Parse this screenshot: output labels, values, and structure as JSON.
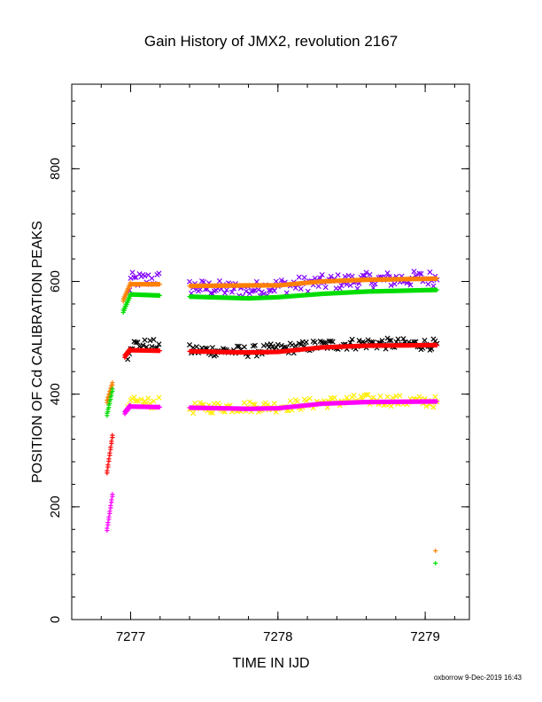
{
  "chart_data": {
    "type": "scatter",
    "title": "Gain History of JMX2, revolution 2167",
    "xlabel": "TIME IN IJD",
    "ylabel": "POSITION OF Cd CALIBRATION PEAKS",
    "xlim": [
      7276.6,
      7279.3
    ],
    "ylim": [
      0,
      950
    ],
    "xticks": [
      7277,
      7278,
      7279
    ],
    "yticks": [
      0,
      200,
      400,
      600,
      800
    ],
    "minor_xtick_step": 0.2,
    "minor_ytick_step": 40,
    "grid": false,
    "legend": "none",
    "footer": "oxborrow 9-Dec-2019 16:43",
    "series": [
      {
        "color": "#ff8000",
        "marker": "plus",
        "segments": [
          {
            "x": [
              7276.84,
              7276.88
            ],
            "y": [
              385,
              420
            ]
          },
          {
            "x": [
              7276.95,
              7277.0
            ],
            "y": [
              565,
              595
            ]
          },
          {
            "x": [
              7277.0,
              7277.2
            ],
            "y": [
              595,
              595
            ]
          },
          {
            "x": [
              7277.4,
              7277.8,
              7278.0,
              7278.3,
              7278.6,
              7279.08
            ],
            "y": [
              592,
              593,
              593,
              600,
              603,
              605
            ]
          }
        ],
        "points": [
          {
            "x": 7279.07,
            "y": 122
          }
        ]
      },
      {
        "color": "#00dd00",
        "marker": "plus",
        "segments": [
          {
            "x": [
              7276.84,
              7276.88
            ],
            "y": [
              362,
              410
            ]
          },
          {
            "x": [
              7276.95,
              7277.0
            ],
            "y": [
              545,
              575
            ]
          },
          {
            "x": [
              7277.0,
              7277.2
            ],
            "y": [
              577,
              575
            ]
          },
          {
            "x": [
              7277.4,
              7277.8,
              7278.0,
              7278.3,
              7278.6,
              7279.08
            ],
            "y": [
              573,
              570,
              572,
              578,
              582,
              585
            ]
          }
        ],
        "points": [
          {
            "x": 7279.07,
            "y": 100
          }
        ]
      },
      {
        "color": "#ff0000",
        "marker": "plus",
        "segments": [
          {
            "x": [
              7276.84,
              7276.88
            ],
            "y": [
              260,
              330
            ]
          },
          {
            "x": [
              7276.96,
              7277.0
            ],
            "y": [
              465,
              478
            ]
          },
          {
            "x": [
              7277.0,
              7277.2
            ],
            "y": [
              478,
              477
            ]
          },
          {
            "x": [
              7277.4,
              7277.8,
              7278.0,
              7278.3,
              7278.6,
              7279.08
            ],
            "y": [
              476,
              474,
              475,
              483,
              486,
              487
            ]
          }
        ],
        "points": []
      },
      {
        "color": "#ff00ff",
        "marker": "plus",
        "segments": [
          {
            "x": [
              7276.84,
              7276.88
            ],
            "y": [
              158,
              225
            ]
          },
          {
            "x": [
              7276.96,
              7277.0
            ],
            "y": [
              365,
              378
            ]
          },
          {
            "x": [
              7277.0,
              7277.2
            ],
            "y": [
              378,
              377
            ]
          },
          {
            "x": [
              7277.4,
              7277.8,
              7278.0,
              7278.3,
              7278.6,
              7279.08
            ],
            "y": [
              376,
              374,
              375,
              383,
              386,
              387
            ]
          }
        ],
        "points": []
      },
      {
        "color": "#8000ff",
        "marker": "cross",
        "scatter": 14,
        "segments": [
          {
            "x": [
              7276.98,
              7277.0
            ],
            "y": [
              575,
              600
            ]
          },
          {
            "x": [
              7277.0,
              7277.2
            ],
            "y": [
              602,
              604
            ]
          },
          {
            "x": [
              7277.4,
              7277.8,
              7278.0,
              7278.3,
              7278.6,
              7279.08
            ],
            "y": [
              590,
              585,
              592,
              598,
              602,
              606
            ]
          }
        ],
        "points": []
      },
      {
        "color": "#000000",
        "marker": "cross",
        "scatter": 10,
        "segments": [
          {
            "x": [
              7276.98,
              7277.0
            ],
            "y": [
              470,
              485
            ]
          },
          {
            "x": [
              7277.0,
              7277.2
            ],
            "y": [
              488,
              487
            ]
          },
          {
            "x": [
              7277.4,
              7277.8,
              7278.0,
              7278.3,
              7278.6,
              7279.08
            ],
            "y": [
              478,
              476,
              480,
              487,
              490,
              488
            ]
          }
        ],
        "points": []
      },
      {
        "color": "#ffee00",
        "marker": "cross",
        "scatter": 10,
        "segments": [
          {
            "x": [
              7276.98,
              7277.0
            ],
            "y": [
              368,
              380
            ]
          },
          {
            "x": [
              7277.0,
              7277.2
            ],
            "y": [
              385,
              384
            ]
          },
          {
            "x": [
              7277.4,
              7277.8,
              7278.0,
              7278.3,
              7278.6,
              7279.08
            ],
            "y": [
              375,
              378,
              378,
              385,
              390,
              386
            ]
          }
        ],
        "points": []
      }
    ]
  }
}
